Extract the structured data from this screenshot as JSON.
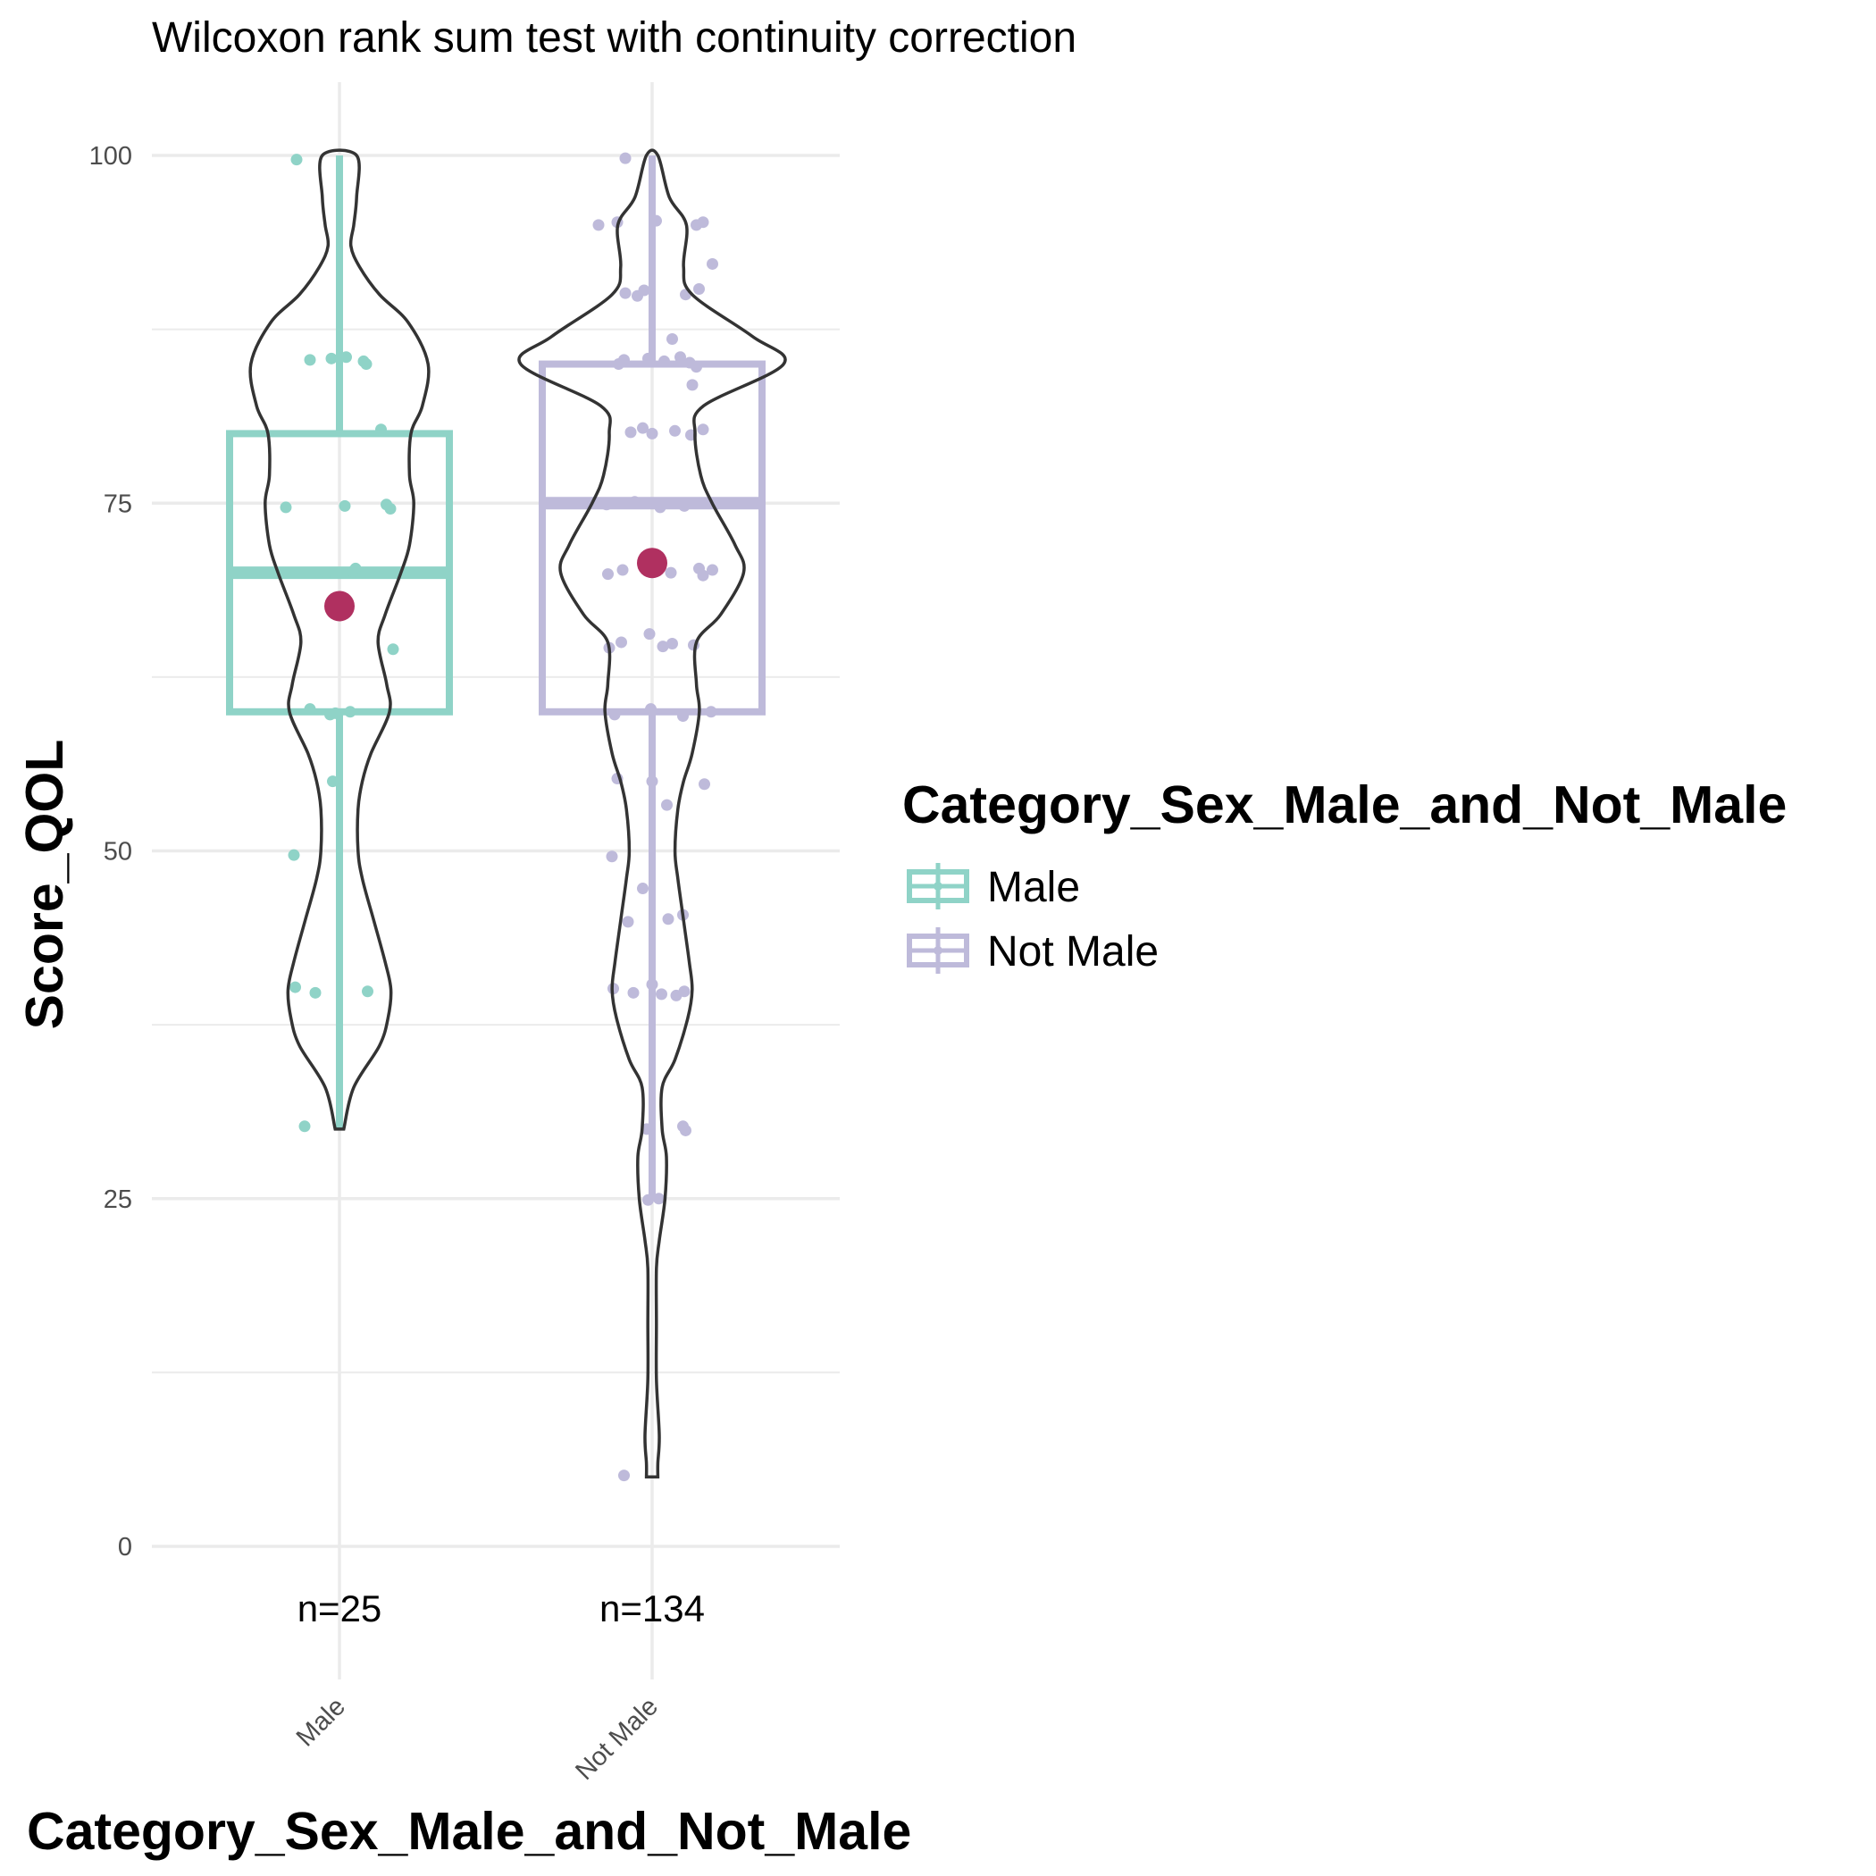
{
  "chart_data": {
    "type": "violin+box",
    "title": "Wilcoxon rank sum test with continuity correction",
    "xlabel": "Category_Sex_Male_and_Not_Male",
    "ylabel": "Score_QOL",
    "ylim": [
      -7,
      105
    ],
    "yticks": [
      0,
      25,
      50,
      75,
      100
    ],
    "grid": true,
    "legend": {
      "title": "Category_Sex_Male_and_Not_Male",
      "position": "right"
    },
    "mean_color": "#b03060",
    "violin_color": "#333333",
    "groups": [
      {
        "category": "Male",
        "n_label": "n=25",
        "color": "#8fd3c7",
        "box": {
          "lower_whisker": 30,
          "q1": 60,
          "median": 70,
          "q3": 80,
          "upper_whisker": 100
        },
        "mean": 67.6,
        "violin": {
          "y": [
            30,
            33,
            36,
            38,
            40,
            42,
            45,
            48,
            50,
            53,
            55,
            57,
            60,
            62,
            65,
            67,
            70,
            72,
            75,
            77,
            80,
            82,
            85,
            88,
            90,
            92,
            93.5,
            95,
            97,
            100
          ],
          "width": [
            0.03,
            0.1,
            0.28,
            0.34,
            0.36,
            0.32,
            0.24,
            0.16,
            0.13,
            0.13,
            0.16,
            0.22,
            0.35,
            0.33,
            0.27,
            0.32,
            0.43,
            0.49,
            0.52,
            0.49,
            0.5,
            0.58,
            0.62,
            0.48,
            0.28,
            0.14,
            0.08,
            0.1,
            0.12,
            0.12
          ]
        },
        "points": [
          [
            -0.32,
            99.7
          ],
          [
            -0.22,
            85.3
          ],
          [
            -0.06,
            85.4
          ],
          [
            0.05,
            85.5
          ],
          [
            0.18,
            85.2
          ],
          [
            0.31,
            80.3
          ],
          [
            -0.4,
            74.7
          ],
          [
            0.04,
            74.8
          ],
          [
            0.35,
            74.9
          ],
          [
            0.38,
            74.6
          ],
          [
            0.1,
            70.1
          ],
          [
            0.12,
            70.3
          ],
          [
            0.4,
            64.5
          ],
          [
            -0.22,
            60.2
          ],
          [
            -0.07,
            59.8
          ],
          [
            -0.03,
            59.9
          ],
          [
            -0.05,
            55.0
          ],
          [
            -0.34,
            49.7
          ],
          [
            -0.33,
            40.2
          ],
          [
            -0.18,
            39.8
          ],
          [
            0.21,
            39.9
          ],
          [
            -0.26,
            30.2
          ],
          [
            -0.1,
            70.0
          ],
          [
            0.08,
            60.0
          ],
          [
            0.2,
            85.0
          ]
        ]
      },
      {
        "category": "Not Male",
        "n_label": "n=134",
        "color": "#bebada",
        "box": {
          "lower_whisker": 25,
          "q1": 60,
          "median": 75,
          "q3": 85,
          "upper_whisker": 100
        },
        "mean": 70.7,
        "violin": {
          "y": [
            5,
            6,
            8,
            12,
            16,
            20,
            22,
            25,
            28,
            30,
            33,
            35,
            38,
            40,
            42,
            45,
            48,
            50,
            53,
            55,
            57,
            60,
            62,
            65,
            67,
            70,
            72,
            75,
            77,
            80,
            82,
            85,
            87,
            90,
            92,
            95,
            97,
            100
          ],
          "width": [
            0.04,
            0.04,
            0.05,
            0.03,
            0.03,
            0.03,
            0.05,
            0.09,
            0.1,
            0.07,
            0.07,
            0.16,
            0.25,
            0.28,
            0.26,
            0.22,
            0.18,
            0.16,
            0.18,
            0.22,
            0.28,
            0.33,
            0.31,
            0.31,
            0.48,
            0.64,
            0.58,
            0.42,
            0.34,
            0.3,
            0.36,
            0.92,
            0.7,
            0.28,
            0.22,
            0.24,
            0.12,
            0.04
          ]
        },
        "points": [
          [
            -0.4,
            95.0
          ],
          [
            -0.26,
            95.2
          ],
          [
            0.03,
            95.3
          ],
          [
            0.33,
            95.0
          ],
          [
            0.38,
            95.2
          ],
          [
            0.45,
            92.2
          ],
          [
            -0.2,
            90.1
          ],
          [
            -0.06,
            90.3
          ],
          [
            -0.11,
            89.9
          ],
          [
            0.25,
            90.0
          ],
          [
            0.35,
            90.4
          ],
          [
            -0.21,
            85.3
          ],
          [
            -0.03,
            85.4
          ],
          [
            0.09,
            85.2
          ],
          [
            0.33,
            84.8
          ],
          [
            0.21,
            85.5
          ],
          [
            0.15,
            86.8
          ],
          [
            0.3,
            83.5
          ],
          [
            -0.25,
            85.0
          ],
          [
            0.28,
            85.1
          ],
          [
            -0.16,
            80.1
          ],
          [
            -0.07,
            80.4
          ],
          [
            0.17,
            80.2
          ],
          [
            0.29,
            79.9
          ],
          [
            0.38,
            80.3
          ],
          [
            0.0,
            80.0
          ],
          [
            -0.34,
            74.9
          ],
          [
            -0.13,
            75.1
          ],
          [
            0.24,
            74.8
          ],
          [
            0.32,
            75.0
          ],
          [
            0.06,
            74.7
          ],
          [
            -0.33,
            69.9
          ],
          [
            -0.22,
            70.2
          ],
          [
            -0.03,
            70.1
          ],
          [
            0.14,
            70.0
          ],
          [
            0.35,
            70.3
          ],
          [
            0.45,
            70.2
          ],
          [
            0.38,
            69.8
          ],
          [
            -0.32,
            64.6
          ],
          [
            -0.23,
            65.0
          ],
          [
            -0.02,
            65.6
          ],
          [
            0.08,
            64.7
          ],
          [
            0.31,
            64.8
          ],
          [
            0.15,
            64.9
          ],
          [
            -0.28,
            59.8
          ],
          [
            -0.01,
            60.2
          ],
          [
            0.23,
            59.7
          ],
          [
            0.44,
            60.0
          ],
          [
            -0.26,
            55.2
          ],
          [
            0.0,
            55.0
          ],
          [
            0.39,
            54.8
          ],
          [
            0.11,
            53.3
          ],
          [
            -0.3,
            49.6
          ],
          [
            -0.07,
            47.3
          ],
          [
            -0.18,
            44.9
          ],
          [
            0.12,
            45.1
          ],
          [
            0.23,
            45.4
          ],
          [
            -0.29,
            40.1
          ],
          [
            -0.14,
            39.8
          ],
          [
            0.0,
            40.4
          ],
          [
            0.07,
            39.7
          ],
          [
            0.18,
            39.6
          ],
          [
            0.24,
            39.9
          ],
          [
            -0.04,
            30.0
          ],
          [
            0.23,
            30.2
          ],
          [
            0.25,
            29.9
          ],
          [
            0.05,
            25.0
          ],
          [
            -0.03,
            24.9
          ],
          [
            -0.21,
            5.1
          ],
          [
            -0.2,
            99.8
          ]
        ]
      }
    ]
  }
}
